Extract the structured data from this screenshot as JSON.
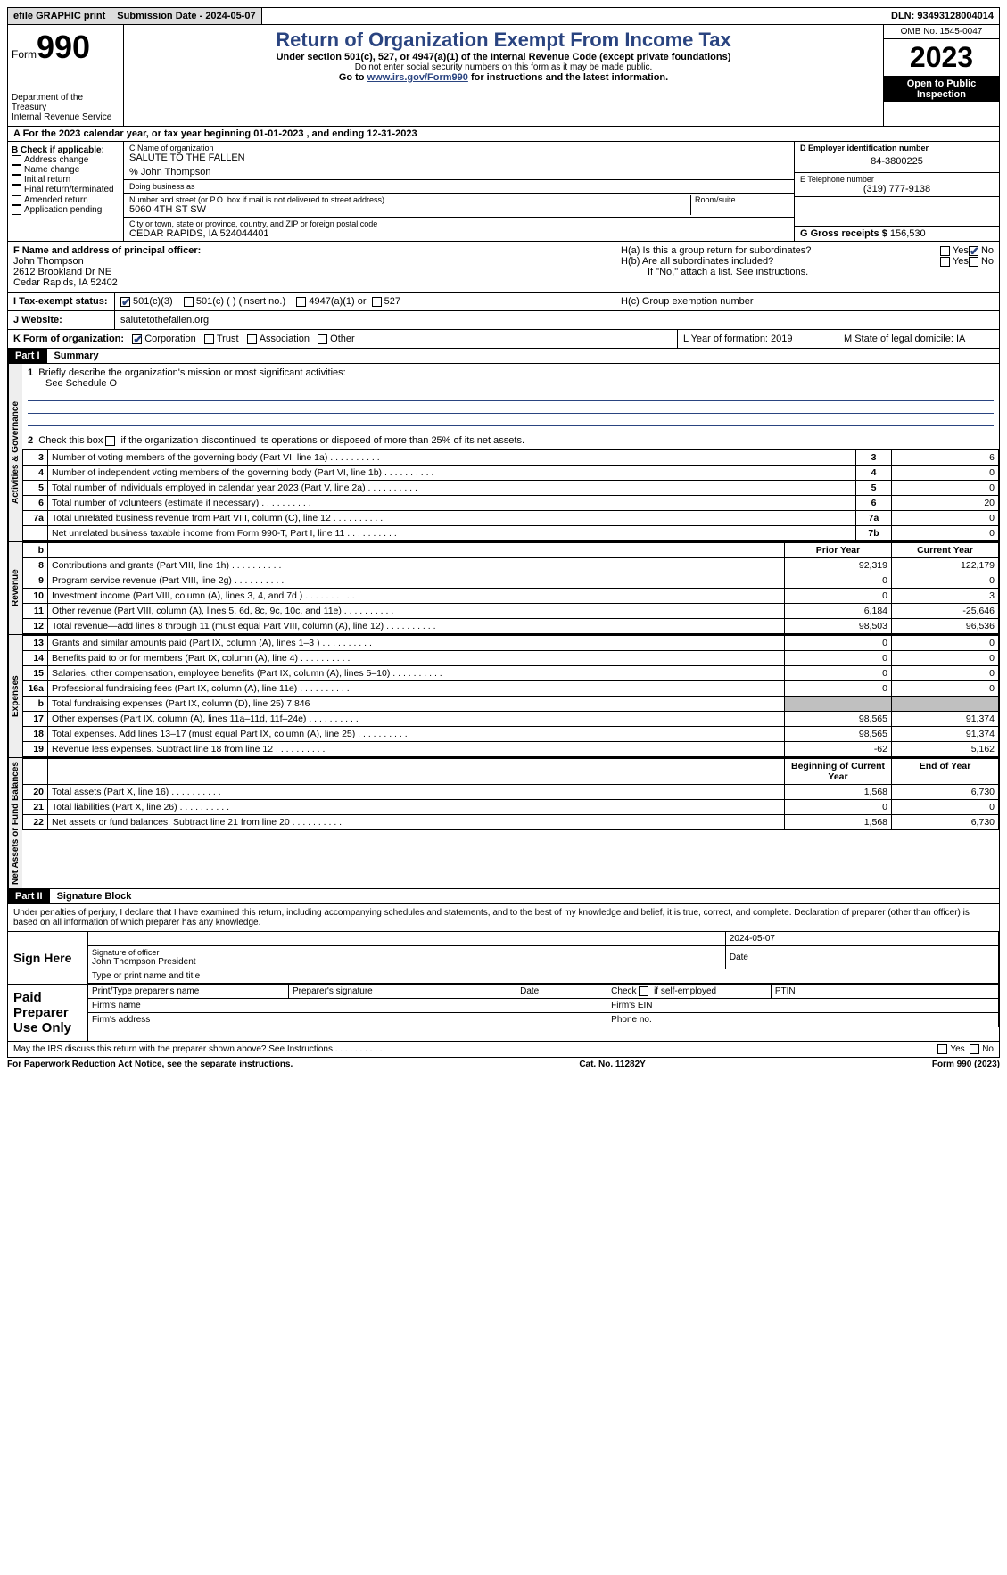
{
  "top": {
    "efile": "efile GRAPHIC print",
    "submission": "Submission Date - 2024-05-07",
    "dln": "DLN: 93493128004014"
  },
  "header": {
    "form_label": "Form",
    "form_num": "990",
    "dept": "Department of the Treasury",
    "irs": "Internal Revenue Service",
    "title": "Return of Organization Exempt From Income Tax",
    "subtitle": "Under section 501(c), 527, or 4947(a)(1) of the Internal Revenue Code (except private foundations)",
    "note1": "Do not enter social security numbers on this form as it may be made public.",
    "note2_pre": "Go to ",
    "note2_link": "www.irs.gov/Form990",
    "note2_post": " for instructions and the latest information.",
    "omb": "OMB No. 1545-0047",
    "year": "2023",
    "inspection": "Open to Public Inspection"
  },
  "a": "A For the 2023 calendar year, or tax year beginning 01-01-2023   , and ending 12-31-2023",
  "b": {
    "label": "B Check if applicable:",
    "opts": [
      "Address change",
      "Name change",
      "Initial return",
      "Final return/terminated",
      "Amended return",
      "Application pending"
    ]
  },
  "c": {
    "name_lbl": "C Name of organization",
    "name": "SALUTE TO THE FALLEN",
    "care": "% John Thompson",
    "dba_lbl": "Doing business as",
    "street_lbl": "Number and street (or P.O. box if mail is not delivered to street address)",
    "street": "5060 4TH ST SW",
    "room_lbl": "Room/suite",
    "city_lbl": "City or town, state or province, country, and ZIP or foreign postal code",
    "city": "CEDAR RAPIDS, IA  524044401"
  },
  "d": {
    "lbl": "D Employer identification number",
    "val": "84-3800225"
  },
  "e": {
    "lbl": "E Telephone number",
    "val": "(319) 777-9138"
  },
  "g": {
    "lbl": "G Gross receipts $",
    "val": "156,530"
  },
  "f": {
    "lbl": "F  Name and address of principal officer:",
    "name": "John Thompson",
    "addr1": "2612 Brookland Dr NE",
    "addr2": "Cedar Rapids, IA  52402"
  },
  "h": {
    "a": "H(a)  Is this a group return for subordinates?",
    "b": "H(b)  Are all subordinates included?",
    "b_note": "If \"No,\" attach a list. See instructions.",
    "c": "H(c)  Group exemption number"
  },
  "i": {
    "lbl": "I   Tax-exempt status:",
    "o1": "501(c)(3)",
    "o2": "501(c) (  ) (insert no.)",
    "o3": "4947(a)(1) or",
    "o4": "527"
  },
  "j": {
    "lbl": "J   Website:",
    "val": "salutetothefallen.org"
  },
  "k": {
    "lbl": "K Form of organization:",
    "o1": "Corporation",
    "o2": "Trust",
    "o3": "Association",
    "o4": "Other"
  },
  "l": "L Year of formation: 2019",
  "m": "M State of legal domicile: IA",
  "part1": {
    "hdr": "Part I",
    "title": "Summary"
  },
  "summary": {
    "line1": "Briefly describe the organization's mission or most significant activities:",
    "line1_val": "See Schedule O",
    "line2": "Check this box        if the organization discontinued its operations or disposed of more than 25% of its net assets.",
    "rows_gov": [
      {
        "n": "3",
        "d": "Number of voting members of the governing body (Part VI, line 1a)",
        "box": "3",
        "v": "6"
      },
      {
        "n": "4",
        "d": "Number of independent voting members of the governing body (Part VI, line 1b)",
        "box": "4",
        "v": "0"
      },
      {
        "n": "5",
        "d": "Total number of individuals employed in calendar year 2023 (Part V, line 2a)",
        "box": "5",
        "v": "0"
      },
      {
        "n": "6",
        "d": "Total number of volunteers (estimate if necessary)",
        "box": "6",
        "v": "20"
      },
      {
        "n": "7a",
        "d": "Total unrelated business revenue from Part VIII, column (C), line 12",
        "box": "7a",
        "v": "0"
      },
      {
        "n": "",
        "d": "Net unrelated business taxable income from Form 990-T, Part I, line 11",
        "box": "7b",
        "v": "0"
      }
    ],
    "hdr_b": "b",
    "hdr_prior": "Prior Year",
    "hdr_current": "Current Year",
    "rows_rev": [
      {
        "n": "8",
        "d": "Contributions and grants (Part VIII, line 1h)",
        "p": "92,319",
        "c": "122,179"
      },
      {
        "n": "9",
        "d": "Program service revenue (Part VIII, line 2g)",
        "p": "0",
        "c": "0"
      },
      {
        "n": "10",
        "d": "Investment income (Part VIII, column (A), lines 3, 4, and 7d )",
        "p": "0",
        "c": "3"
      },
      {
        "n": "11",
        "d": "Other revenue (Part VIII, column (A), lines 5, 6d, 8c, 9c, 10c, and 11e)",
        "p": "6,184",
        "c": "-25,646"
      },
      {
        "n": "12",
        "d": "Total revenue—add lines 8 through 11 (must equal Part VIII, column (A), line 12)",
        "p": "98,503",
        "c": "96,536"
      }
    ],
    "rows_exp": [
      {
        "n": "13",
        "d": "Grants and similar amounts paid (Part IX, column (A), lines 1–3 )",
        "p": "0",
        "c": "0"
      },
      {
        "n": "14",
        "d": "Benefits paid to or for members (Part IX, column (A), line 4)",
        "p": "0",
        "c": "0"
      },
      {
        "n": "15",
        "d": "Salaries, other compensation, employee benefits (Part IX, column (A), lines 5–10)",
        "p": "0",
        "c": "0"
      },
      {
        "n": "16a",
        "d": "Professional fundraising fees (Part IX, column (A), line 11e)",
        "p": "0",
        "c": "0"
      },
      {
        "n": "b",
        "d": "Total fundraising expenses (Part IX, column (D), line 25) 7,846",
        "p": "",
        "c": "",
        "shade": true
      },
      {
        "n": "17",
        "d": "Other expenses (Part IX, column (A), lines 11a–11d, 11f–24e)",
        "p": "98,565",
        "c": "91,374"
      },
      {
        "n": "18",
        "d": "Total expenses. Add lines 13–17 (must equal Part IX, column (A), line 25)",
        "p": "98,565",
        "c": "91,374"
      },
      {
        "n": "19",
        "d": "Revenue less expenses. Subtract line 18 from line 12",
        "p": "-62",
        "c": "5,162"
      }
    ],
    "hdr_begin": "Beginning of Current Year",
    "hdr_end": "End of Year",
    "rows_net": [
      {
        "n": "20",
        "d": "Total assets (Part X, line 16)",
        "p": "1,568",
        "c": "6,730"
      },
      {
        "n": "21",
        "d": "Total liabilities (Part X, line 26)",
        "p": "0",
        "c": "0"
      },
      {
        "n": "22",
        "d": "Net assets or fund balances. Subtract line 21 from line 20",
        "p": "1,568",
        "c": "6,730"
      }
    ],
    "tabs": {
      "gov": "Activities & Governance",
      "rev": "Revenue",
      "exp": "Expenses",
      "net": "Net Assets or Fund Balances"
    }
  },
  "part2": {
    "hdr": "Part II",
    "title": "Signature Block"
  },
  "sig": {
    "decl": "Under penalties of perjury, I declare that I have examined this return, including accompanying schedules and statements, and to the best of my knowledge and belief, it is true, correct, and complete. Declaration of preparer (other than officer) is based on all information of which preparer has any knowledge.",
    "sign_here": "Sign Here",
    "sig_officer": "Signature of officer",
    "officer": "John Thompson President",
    "type_name": "Type or print name and title",
    "date": "Date",
    "sig_date": "2024-05-07",
    "paid": "Paid Preparer Use Only",
    "prep_name": "Print/Type preparer's name",
    "prep_sig": "Preparer's signature",
    "check_self": "Check        if self-employed",
    "ptin": "PTIN",
    "firm_name": "Firm's name",
    "firm_ein": "Firm's EIN",
    "firm_addr": "Firm's address",
    "phone": "Phone no.",
    "discuss": "May the IRS discuss this return with the preparer shown above? See Instructions."
  },
  "footer": {
    "paperwork": "For Paperwork Reduction Act Notice, see the separate instructions.",
    "cat": "Cat. No. 11282Y",
    "form": "Form 990 (2023)"
  }
}
